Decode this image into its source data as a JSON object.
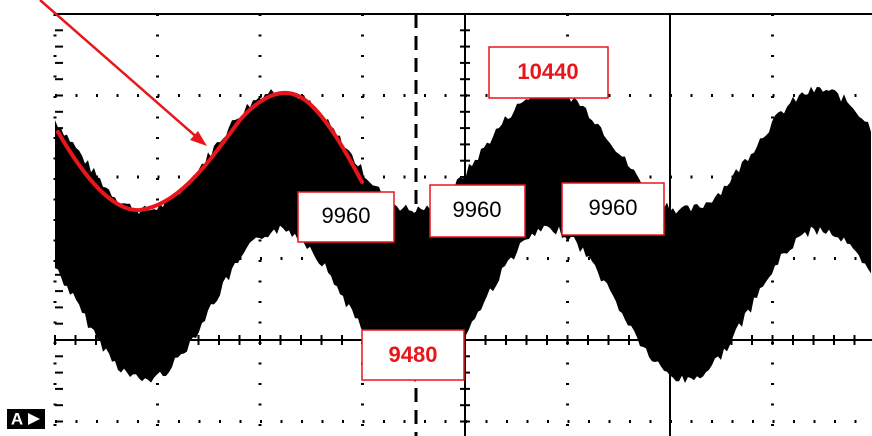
{
  "annotations": {
    "peak": "10440",
    "crossings": [
      "9960",
      "9960",
      "9960"
    ],
    "trough": "9480"
  },
  "channel_marker": "A"
}
